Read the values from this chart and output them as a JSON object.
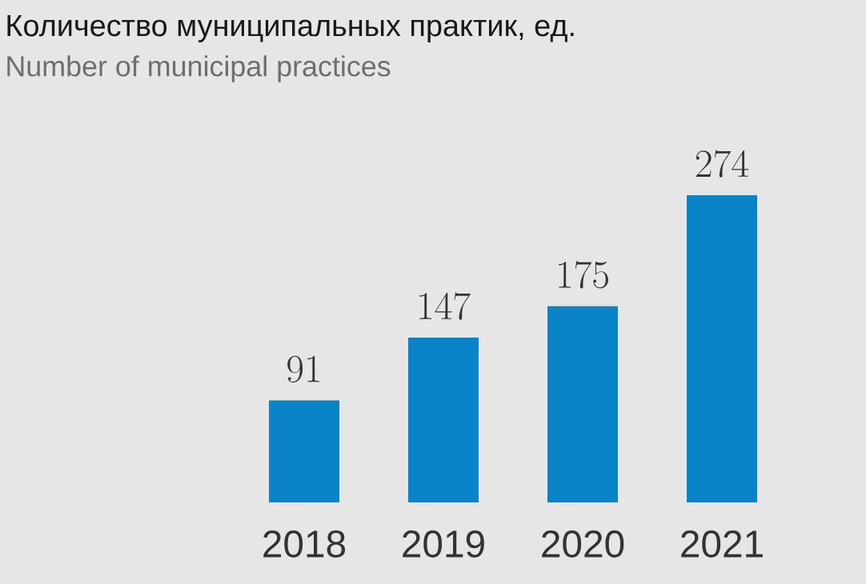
{
  "chart_data": {
    "type": "bar",
    "title": "Количество муниципальных практик, ед.",
    "subtitle": "Number of municipal practices",
    "categories": [
      "2018",
      "2019",
      "2020",
      "2021"
    ],
    "values": [
      91,
      147,
      175,
      274
    ],
    "color": "#0a84c8",
    "data_labels": true
  }
}
